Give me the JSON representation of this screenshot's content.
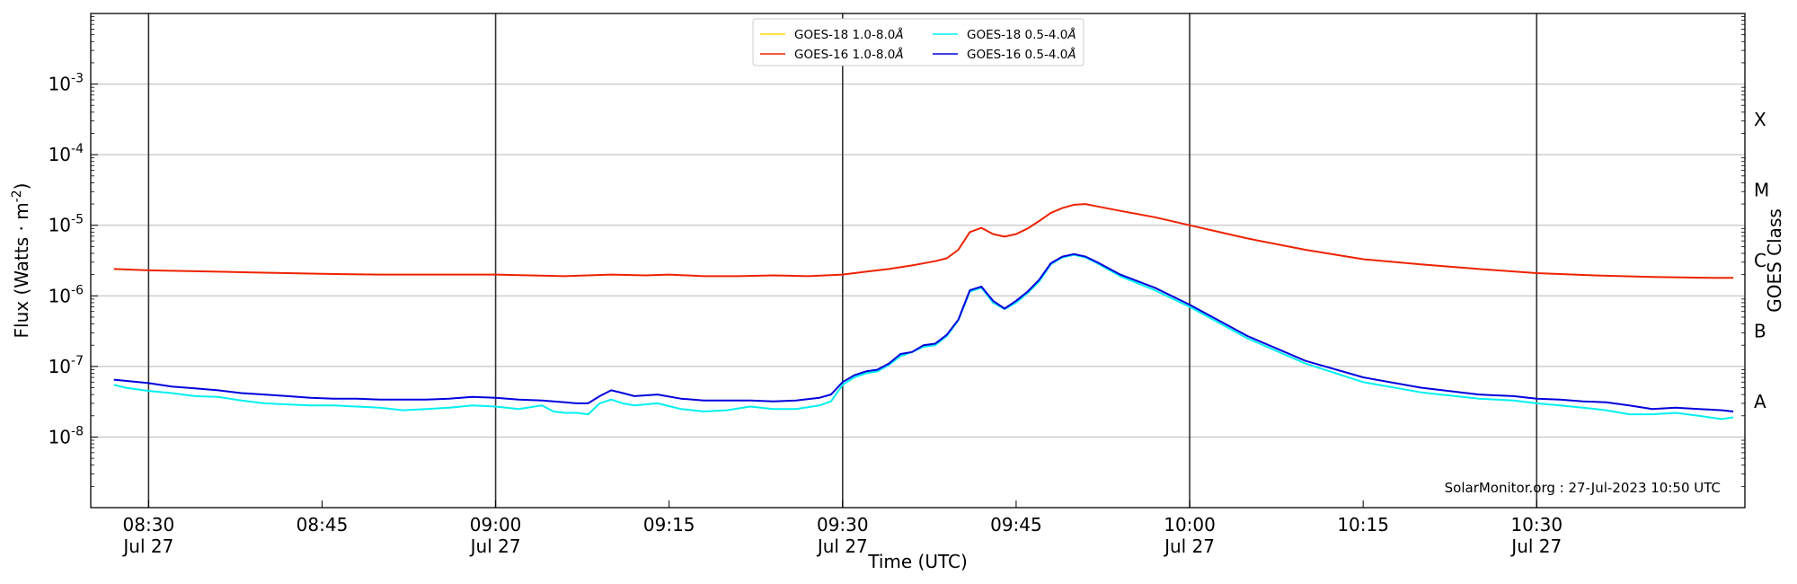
{
  "chart_data": {
    "type": "line",
    "title": "",
    "xlabel": "Time (UTC)",
    "ylabel": "Flux (Watts · m",
    "ylabel_sup": "-2",
    "ylabel_close": ")",
    "right_label": "GOES Class",
    "yscale": "log",
    "ylim": [
      1e-09,
      0.01
    ],
    "y_ticks": [
      {
        "value": -8,
        "base": "10",
        "exp": "-8"
      },
      {
        "value": -7,
        "base": "10",
        "exp": "-7"
      },
      {
        "value": -6,
        "base": "10",
        "exp": "-6"
      },
      {
        "value": -5,
        "base": "10",
        "exp": "-5"
      },
      {
        "value": -4,
        "base": "10",
        "exp": "-4"
      },
      {
        "value": -3,
        "base": "10",
        "exp": "-3"
      }
    ],
    "goes_classes": [
      {
        "label": "A",
        "value": -7.5
      },
      {
        "label": "B",
        "value": -6.5
      },
      {
        "label": "C",
        "value": -5.5
      },
      {
        "label": "M",
        "value": -4.5
      },
      {
        "label": "X",
        "value": -3.5
      }
    ],
    "xlim": [
      "08:25",
      "10:48"
    ],
    "x_ticks": [
      {
        "time": "08:30",
        "label": "08:30",
        "date": "Jul 27",
        "major": true
      },
      {
        "time": "08:45",
        "label": "08:45",
        "date": "",
        "major": false
      },
      {
        "time": "09:00",
        "label": "09:00",
        "date": "Jul 27",
        "major": true
      },
      {
        "time": "09:15",
        "label": "09:15",
        "date": "",
        "major": false
      },
      {
        "time": "09:30",
        "label": "09:30",
        "date": "Jul 27",
        "major": true
      },
      {
        "time": "09:45",
        "label": "09:45",
        "date": "",
        "major": false
      },
      {
        "time": "10:00",
        "label": "10:00",
        "date": "Jul 27",
        "major": true
      },
      {
        "time": "10:15",
        "label": "10:15",
        "date": "",
        "major": false
      },
      {
        "time": "10:30",
        "label": "10:30",
        "date": "Jul 27",
        "major": true
      }
    ],
    "grid": "horizontal",
    "legend_position": "top-center",
    "legend": [
      {
        "label": "GOES-18 1.0-8.0",
        "color": "#ffd700"
      },
      {
        "label": "GOES-16 1.0-8.0",
        "color": "#ee2200"
      },
      {
        "label": "GOES-18 0.5-4.0",
        "color": "#00f0f0"
      },
      {
        "label": "GOES-16 0.5-4.0",
        "color": "#0000dd"
      }
    ],
    "angstrom_symbol": "Å",
    "annotation": "SolarMonitor.org : 27-Jul-2023 10:50 UTC",
    "series": [
      {
        "name": "GOES-16 1.0-8.0",
        "color": "#ee2200",
        "x": [
          "08:27",
          "08:30",
          "08:33",
          "08:36",
          "08:39",
          "08:42",
          "08:45",
          "08:50",
          "08:55",
          "09:00",
          "09:03",
          "09:06",
          "09:08",
          "09:10",
          "09:13",
          "09:15",
          "09:18",
          "09:21",
          "09:24",
          "09:27",
          "09:30",
          "09:32",
          "09:34",
          "09:36",
          "09:38",
          "09:39",
          "09:40",
          "09:41",
          "09:42",
          "09:43",
          "09:44",
          "09:45",
          "09:46",
          "09:47",
          "09:48",
          "09:49",
          "09:50",
          "09:51",
          "09:52",
          "09:54",
          "09:57",
          "10:00",
          "10:05",
          "10:10",
          "10:15",
          "10:20",
          "10:25",
          "10:30",
          "10:35",
          "10:40",
          "10:45",
          "10:47"
        ],
        "y": [
          2.4e-06,
          2.3e-06,
          2.25e-06,
          2.2e-06,
          2.15e-06,
          2.1e-06,
          2.05e-06,
          2e-06,
          2e-06,
          2e-06,
          1.95e-06,
          1.9e-06,
          1.95e-06,
          2e-06,
          1.95e-06,
          2e-06,
          1.9e-06,
          1.9e-06,
          1.95e-06,
          1.9e-06,
          2e-06,
          2.2e-06,
          2.4e-06,
          2.7e-06,
          3.1e-06,
          3.4e-06,
          4.5e-06,
          8e-06,
          9.2e-06,
          7.5e-06,
          6.9e-06,
          7.5e-06,
          9e-06,
          1.15e-05,
          1.5e-05,
          1.75e-05,
          1.95e-05,
          2e-05,
          1.85e-05,
          1.6e-05,
          1.3e-05,
          1e-05,
          6.5e-06,
          4.5e-06,
          3.3e-06,
          2.8e-06,
          2.4e-06,
          2.1e-06,
          1.95e-06,
          1.85e-06,
          1.8e-06,
          1.8e-06
        ]
      },
      {
        "name": "GOES-18 0.5-4.0",
        "color": "#00f0f0",
        "x": [
          "08:27",
          "08:28",
          "08:30",
          "08:32",
          "08:34",
          "08:36",
          "08:38",
          "08:40",
          "08:42",
          "08:44",
          "08:46",
          "08:48",
          "08:50",
          "08:52",
          "08:54",
          "08:56",
          "08:58",
          "09:00",
          "09:02",
          "09:04",
          "09:05",
          "09:06",
          "09:07",
          "09:08",
          "09:09",
          "09:10",
          "09:11",
          "09:12",
          "09:14",
          "09:16",
          "09:18",
          "09:20",
          "09:22",
          "09:24",
          "09:26",
          "09:28",
          "09:29",
          "09:30",
          "09:31",
          "09:32",
          "09:33",
          "09:34",
          "09:35",
          "09:36",
          "09:37",
          "09:38",
          "09:39",
          "09:40",
          "09:41",
          "09:42",
          "09:43",
          "09:44",
          "09:45",
          "09:46",
          "09:47",
          "09:48",
          "09:49",
          "09:50",
          "09:51",
          "09:52",
          "09:54",
          "09:57",
          "10:00",
          "10:05",
          "10:10",
          "10:15",
          "10:20",
          "10:25",
          "10:28",
          "10:30",
          "10:32",
          "10:34",
          "10:36",
          "10:38",
          "10:40",
          "10:42",
          "10:44",
          "10:46",
          "10:47"
        ],
        "y": [
          5.5e-08,
          5e-08,
          4.5e-08,
          4.2e-08,
          3.8e-08,
          3.7e-08,
          3.3e-08,
          3e-08,
          2.9e-08,
          2.8e-08,
          2.8e-08,
          2.7e-08,
          2.6e-08,
          2.4e-08,
          2.5e-08,
          2.6e-08,
          2.8e-08,
          2.7e-08,
          2.5e-08,
          2.8e-08,
          2.3e-08,
          2.2e-08,
          2.2e-08,
          2.1e-08,
          3e-08,
          3.4e-08,
          3e-08,
          2.8e-08,
          3e-08,
          2.5e-08,
          2.3e-08,
          2.4e-08,
          2.7e-08,
          2.5e-08,
          2.5e-08,
          2.8e-08,
          3.2e-08,
          5.5e-08,
          7e-08,
          8e-08,
          8.5e-08,
          1.05e-07,
          1.4e-07,
          1.6e-07,
          1.9e-07,
          2e-07,
          2.7e-07,
          4.5e-07,
          1.15e-06,
          1.3e-06,
          8e-07,
          6.5e-07,
          8e-07,
          1.1e-06,
          1.6e-06,
          2.8e-06,
          3.5e-06,
          3.8e-06,
          3.5e-06,
          2.9e-06,
          1.9e-06,
          1.2e-06,
          7e-07,
          2.5e-07,
          1.1e-07,
          6e-08,
          4.3e-08,
          3.5e-08,
          3.3e-08,
          3e-08,
          2.8e-08,
          2.6e-08,
          2.4e-08,
          2.1e-08,
          2.1e-08,
          2.2e-08,
          2e-08,
          1.8e-08,
          1.9e-08
        ]
      },
      {
        "name": "GOES-16 0.5-4.0",
        "color": "#0000dd",
        "x": [
          "08:27",
          "08:30",
          "08:32",
          "08:34",
          "08:36",
          "08:38",
          "08:40",
          "08:42",
          "08:44",
          "08:46",
          "08:48",
          "08:50",
          "08:52",
          "08:54",
          "08:56",
          "08:58",
          "09:00",
          "09:02",
          "09:04",
          "09:05",
          "09:06",
          "09:07",
          "09:08",
          "09:09",
          "09:10",
          "09:11",
          "09:12",
          "09:14",
          "09:16",
          "09:18",
          "09:20",
          "09:22",
          "09:24",
          "09:26",
          "09:28",
          "09:29",
          "09:30",
          "09:31",
          "09:32",
          "09:33",
          "09:34",
          "09:35",
          "09:36",
          "09:37",
          "09:38",
          "09:39",
          "09:40",
          "09:41",
          "09:42",
          "09:43",
          "09:44",
          "09:45",
          "09:46",
          "09:47",
          "09:48",
          "09:49",
          "09:50",
          "09:51",
          "09:52",
          "09:54",
          "09:57",
          "10:00",
          "10:05",
          "10:10",
          "10:15",
          "10:20",
          "10:25",
          "10:28",
          "10:30",
          "10:32",
          "10:34",
          "10:36",
          "10:38",
          "10:40",
          "10:42",
          "10:44",
          "10:46",
          "10:47"
        ],
        "y": [
          6.5e-08,
          5.8e-08,
          5.2e-08,
          4.9e-08,
          4.6e-08,
          4.2e-08,
          4e-08,
          3.8e-08,
          3.6e-08,
          3.5e-08,
          3.5e-08,
          3.4e-08,
          3.4e-08,
          3.4e-08,
          3.5e-08,
          3.7e-08,
          3.6e-08,
          3.4e-08,
          3.3e-08,
          3.2e-08,
          3.1e-08,
          3e-08,
          3e-08,
          3.8e-08,
          4.6e-08,
          4.2e-08,
          3.8e-08,
          4e-08,
          3.5e-08,
          3.3e-08,
          3.3e-08,
          3.3e-08,
          3.2e-08,
          3.3e-08,
          3.6e-08,
          4e-08,
          6e-08,
          7.5e-08,
          8.5e-08,
          9e-08,
          1.1e-07,
          1.5e-07,
          1.6e-07,
          2e-07,
          2.1e-07,
          2.8e-07,
          4.6e-07,
          1.2e-06,
          1.35e-06,
          8.5e-07,
          6.6e-07,
          8.5e-07,
          1.15e-06,
          1.7e-06,
          2.9e-06,
          3.6e-06,
          3.9e-06,
          3.6e-06,
          3e-06,
          2e-06,
          1.3e-06,
          7.5e-07,
          2.7e-07,
          1.2e-07,
          7e-08,
          5e-08,
          4e-08,
          3.8e-08,
          3.5e-08,
          3.4e-08,
          3.2e-08,
          3.1e-08,
          2.8e-08,
          2.5e-08,
          2.6e-08,
          2.5e-08,
          2.4e-08,
          2.3e-08
        ]
      }
    ]
  }
}
